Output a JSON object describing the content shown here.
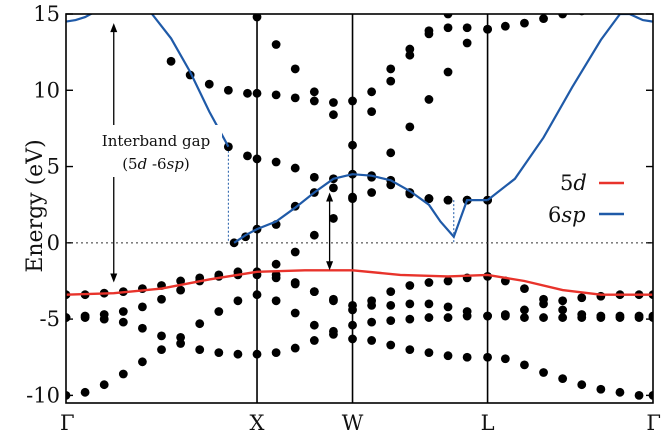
{
  "chart_data": {
    "type": "scatter",
    "title": "",
    "xlabel": "",
    "ylabel": "Energy (eV)",
    "ylim": [
      -10.5,
      15
    ],
    "yticks": [
      -10,
      -5,
      0,
      5,
      10,
      15
    ],
    "ytick_labels": [
      "-10",
      "-5",
      "0",
      "5",
      "10",
      "15"
    ],
    "xticks": [
      {
        "label": "Γ",
        "x": 0
      },
      {
        "label": "X",
        "x": 1
      },
      {
        "label": "W",
        "x": 1.5
      },
      {
        "label": "L",
        "x": 2.207
      },
      {
        "label": "Γ",
        "x": 3.073
      }
    ],
    "fermi_level": 0,
    "grid": false,
    "legend_position": "center-right",
    "annotation": {
      "line1": "Interband gap",
      "line2_a": "(5",
      "line2_b": "d",
      "line2_c": " -6",
      "line2_d": "sp",
      "line2_e": ")"
    },
    "series": [
      {
        "name": "5d",
        "legend_number": "5",
        "legend_italic": "d",
        "color": "#e8332b",
        "x": [
          0,
          0.25,
          0.5,
          0.75,
          1.0,
          1.25,
          1.5,
          1.75,
          2.0,
          2.207,
          2.4,
          2.6,
          2.8,
          3.073
        ],
        "y": [
          -3.4,
          -3.3,
          -3.0,
          -2.4,
          -1.9,
          -1.8,
          -1.8,
          -2.1,
          -2.2,
          -2.1,
          -2.5,
          -3.1,
          -3.4,
          -3.4
        ]
      },
      {
        "name": "6sp",
        "legend_number": "6",
        "legend_italic": "sp",
        "color": "#1f5aa8",
        "segments": [
          {
            "x": [
              0,
              0.05,
              0.1,
              0.16
            ],
            "y": [
              14.5,
              14.6,
              14.8,
              15.2
            ]
          },
          {
            "x": [
              0.45,
              0.55,
              0.65,
              0.75,
              0.85
            ],
            "y": [
              15,
              13.4,
              11.2,
              8.6,
              6.3
            ]
          },
          {
            "x": [
              0.88,
              0.94,
              1.0,
              1.1,
              1.2,
              1.3,
              1.4,
              1.5,
              1.6,
              1.7,
              1.8,
              1.9,
              1.96,
              2.03,
              2.1,
              2.207
            ],
            "y": [
              0,
              0.5,
              0.9,
              1.4,
              2.3,
              3.3,
              4.2,
              4.5,
              4.4,
              4.1,
              3.4,
              2.5,
              1.4,
              0.4,
              2.8,
              2.8
            ]
          },
          {
            "x": [
              2.207,
              2.35,
              2.5,
              2.65,
              2.8,
              2.9,
              2.95,
              3.02,
              3.073
            ],
            "y": [
              2.8,
              4.2,
              6.9,
              10.2,
              13.3,
              15,
              15,
              14.6,
              14.5
            ]
          }
        ]
      }
    ],
    "dots": [
      {
        "name": "band-1",
        "x": [
          0,
          0.1,
          0.2,
          0.3,
          0.4,
          0.5,
          0.6,
          0.7,
          0.8,
          0.9,
          1.0,
          1.1,
          1.2,
          1.3,
          1.4,
          1.5,
          1.6,
          1.7,
          1.8,
          1.9,
          2.0,
          2.1,
          2.207,
          2.3,
          2.4,
          2.5,
          2.6,
          2.7,
          2.8,
          2.9,
          3.0,
          3.073
        ],
        "y": [
          -10,
          -9.8,
          -9.3,
          -8.6,
          -7.8,
          -7.0,
          -6.2,
          -5.3,
          -4.5,
          -3.8,
          -3.4,
          -3.8,
          -4.6,
          -5.4,
          -6.0,
          -6.3,
          -6.4,
          -6.7,
          -7.0,
          -7.2,
          -7.4,
          -7.5,
          -7.5,
          -7.6,
          -8.0,
          -8.5,
          -8.9,
          -9.3,
          -9.6,
          -9.8,
          -10,
          -10
        ]
      },
      {
        "name": "band-2",
        "x": [
          0,
          0.1,
          0.2,
          0.3,
          0.4,
          0.5,
          0.6,
          0.7,
          0.8,
          0.9,
          1.0,
          1.1,
          1.2,
          1.3,
          1.4,
          1.5,
          1.6,
          1.7,
          1.8,
          1.9,
          2.0,
          2.1,
          2.207,
          2.3,
          2.4,
          2.5,
          2.6,
          2.7,
          2.8,
          2.9,
          3.0,
          3.073
        ],
        "y": [
          -4.9,
          -4.9,
          -5.0,
          -5.2,
          -5.6,
          -6.1,
          -6.6,
          -7.0,
          -7.2,
          -7.3,
          -7.3,
          -7.2,
          -6.9,
          -6.4,
          -5.8,
          -5.4,
          -5.2,
          -5.1,
          -5.0,
          -4.9,
          -4.9,
          -4.8,
          -4.8,
          -4.8,
          -4.9,
          -4.9,
          -4.9,
          -4.9,
          -4.9,
          -4.9,
          -4.9,
          -4.9
        ]
      },
      {
        "name": "band-3",
        "x": [
          0,
          0.1,
          0.2,
          0.3,
          0.4,
          0.5,
          0.6,
          0.7,
          0.8,
          0.9,
          1.0,
          1.1,
          1.2,
          1.3,
          1.4,
          1.5,
          1.6,
          1.7,
          1.8,
          1.9,
          2.0,
          2.1,
          2.207,
          2.3,
          2.4,
          2.5,
          2.6,
          2.7,
          2.8,
          2.9,
          3.0,
          3.073
        ],
        "y": [
          -4.9,
          -4.8,
          -4.7,
          -4.5,
          -4.2,
          -3.7,
          -3.1,
          -2.5,
          -2.1,
          -1.9,
          -1.9,
          -2.1,
          -2.6,
          -3.2,
          -3.8,
          -4.1,
          -4.1,
          -4.1,
          -4.0,
          -4.0,
          -4.2,
          -4.5,
          -4.8,
          -4.7,
          -4.4,
          -4.0,
          -3.8,
          -3.6,
          -3.5,
          -3.4,
          -3.4,
          -3.4
        ]
      },
      {
        "name": "band-4",
        "x": [
          0,
          0.1,
          0.2,
          0.3,
          0.4,
          0.5,
          0.6,
          0.7,
          0.8,
          0.9,
          1.0,
          1.1,
          1.2,
          1.3,
          1.4,
          1.5,
          1.6,
          1.7,
          1.8,
          1.9,
          2.0,
          2.1,
          2.207,
          2.3,
          2.4,
          2.5,
          2.6,
          2.7,
          2.8,
          2.9,
          3.0,
          3.073
        ],
        "y": [
          -3.4,
          -3.4,
          -3.3,
          -3.2,
          -3.0,
          -2.8,
          -2.5,
          -2.3,
          -2.2,
          -2.1,
          -2.1,
          -2.3,
          -2.7,
          -3.2,
          -3.7,
          -4.4,
          -3.8,
          -3.2,
          -2.8,
          -2.6,
          -2.5,
          -2.3,
          -2.2,
          -2.5,
          -3.0,
          -3.7,
          -4.4,
          -4.7,
          -4.8,
          -4.8,
          -4.8,
          -4.8
        ]
      },
      {
        "name": "band-5",
        "x": [
          0.88,
          0.94,
          1.0,
          1.1,
          1.2,
          1.3,
          1.4,
          1.5,
          1.6,
          1.7,
          1.8,
          1.9,
          2.0,
          2.1,
          2.207
        ],
        "y": [
          0,
          0.4,
          0.9,
          1.2,
          2.4,
          3.3,
          4.2,
          4.5,
          4.4,
          4.1,
          3.3,
          2.9,
          2.8,
          2.8,
          2.8
        ]
      },
      {
        "name": "band-6",
        "x": [
          0.85,
          0.95,
          1.0,
          1.1,
          1.2,
          1.3,
          1.4,
          1.5,
          1.6,
          1.7,
          1.8,
          1.9,
          2.0,
          2.1,
          2.207
        ],
        "y": [
          6.3,
          5.7,
          5.5,
          5.3,
          4.9,
          4.3,
          3.6,
          2.9,
          3.3,
          3.8,
          3.2,
          2.9,
          2.8,
          2.8,
          2.8
        ]
      },
      {
        "name": "band-7",
        "x": [
          0.55,
          0.65,
          0.75,
          0.85,
          0.95,
          1.0,
          1.1,
          1.2,
          1.3,
          1.4,
          1.5,
          1.6,
          1.7,
          1.8,
          1.9,
          2.0,
          2.1,
          2.207
        ],
        "y": [
          11.9,
          11.0,
          10.4,
          10.0,
          9.8,
          9.8,
          9.7,
          9.5,
          9.3,
          9.2,
          9.3,
          9.9,
          11.4,
          12.7,
          13.7,
          14.1,
          14.1,
          14.0
        ]
      },
      {
        "name": "band-8",
        "x": [
          1.1,
          1.2,
          1.3,
          1.4,
          1.5,
          1.6,
          1.7,
          1.8,
          1.9,
          2.0,
          2.1
        ],
        "y": [
          -1.4,
          -0.6,
          0.5,
          1.6,
          3.0,
          4.3,
          5.9,
          7.6,
          9.4,
          11.2,
          13.1
        ]
      },
      {
        "name": "band-9",
        "x": [
          1.0,
          1.1,
          1.2,
          1.3,
          1.4,
          1.5,
          1.6,
          1.7,
          1.8,
          1.9,
          2.0
        ],
        "y": [
          14.8,
          13.0,
          11.4,
          9.9,
          8.4,
          6.4,
          8.6,
          10.6,
          12.3,
          13.9,
          15.0
        ]
      },
      {
        "name": "band-10",
        "x": [
          2.207,
          2.3,
          2.4,
          2.5,
          2.6,
          2.7
        ],
        "y": [
          14.0,
          14.2,
          14.4,
          14.7,
          15.0,
          15.2
        ]
      }
    ]
  }
}
